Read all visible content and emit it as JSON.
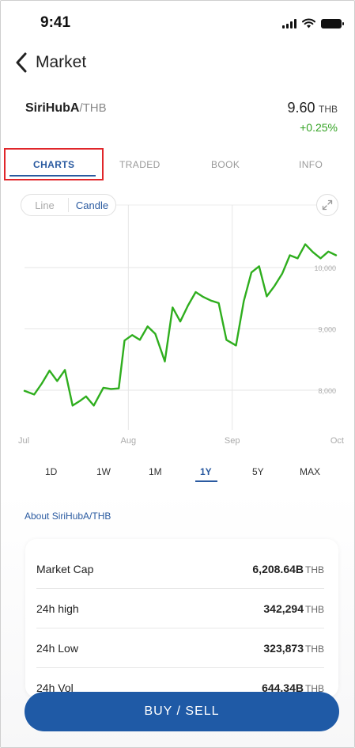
{
  "status": {
    "time": "9:41"
  },
  "header": {
    "title": "Market"
  },
  "pair": {
    "base": "SiriHubA",
    "quote": "/THB",
    "price": "9.60",
    "price_unit": "THB",
    "change": "+0.25%"
  },
  "tabs": [
    {
      "label": "CHARTS",
      "active": true
    },
    {
      "label": "TRADED",
      "active": false
    },
    {
      "label": "BOOK",
      "active": false
    },
    {
      "label": "INFO",
      "active": false
    }
  ],
  "chart_toggle": {
    "line": "Line",
    "candle": "Candle",
    "active": "Candle"
  },
  "chart_data": {
    "type": "line",
    "x_labels": [
      "Jul",
      "Aug",
      "Sep",
      "Oct"
    ],
    "y_ticks": [
      "8,000",
      "9,000",
      "10,000"
    ],
    "y_tick_values": [
      8000,
      9000,
      10000
    ],
    "ylim": [
      7000,
      11000
    ],
    "series": [
      {
        "color": "#2fae1e",
        "x": [
          0,
          0.05,
          0.09,
          0.13,
          0.17,
          0.21,
          0.25,
          0.29,
          0.32,
          0.36,
          0.41,
          0.45,
          0.49,
          0.52,
          0.56,
          0.6,
          0.64,
          0.68,
          0.73,
          0.77,
          0.81,
          0.85,
          0.89,
          0.93,
          0.97,
          1.01,
          1.05,
          1.1,
          1.14,
          1.18,
          1.22,
          1.26,
          1.3,
          1.34,
          1.38,
          1.42,
          1.46,
          1.5,
          1.54,
          1.58,
          1.62,
          1.66,
          1.7,
          1.74,
          1.78,
          1.82,
          1.86,
          1.9,
          1.94,
          1.98,
          2.02,
          2.06,
          2.1,
          2.14,
          2.18,
          2.22,
          2.26,
          2.3,
          2.34,
          2.38,
          2.42,
          2.46,
          2.5,
          2.54,
          2.58,
          2.62,
          2.66,
          2.7,
          2.74,
          2.78,
          2.82,
          2.86,
          2.9,
          2.94,
          2.98,
          3.0
        ],
        "values": [
          7990,
          7930,
          8110,
          8320,
          8150,
          8330,
          7750,
          7830,
          7900,
          7750,
          8040,
          8020,
          8030,
          8810,
          8900,
          8820,
          9040,
          8920,
          8470,
          9350,
          9120,
          9380,
          9600,
          9520,
          9460,
          9420,
          8820,
          8730,
          9450,
          9920,
          10020,
          9530,
          9700,
          9900,
          10200,
          10150,
          10380,
          10250,
          10150,
          10260,
          10200,
          10190,
          10190,
          10190,
          10190,
          10190,
          10190,
          10190,
          10190,
          10190,
          10190,
          10190,
          10190,
          10190,
          10190,
          10190,
          10190,
          10190,
          10190,
          10190,
          10190,
          10190,
          10190,
          10190,
          10190,
          10190,
          10190,
          10190,
          10190,
          10190,
          10190,
          10190,
          10190,
          10190,
          10190,
          10190
        ]
      }
    ],
    "grid": true
  },
  "ranges": [
    {
      "label": "1D",
      "active": false
    },
    {
      "label": "1W",
      "active": false
    },
    {
      "label": "1M",
      "active": false
    },
    {
      "label": "1Y",
      "active": true
    },
    {
      "label": "5Y",
      "active": false
    },
    {
      "label": "MAX",
      "active": false
    }
  ],
  "about": {
    "label": "About SiriHubA/THB"
  },
  "stats": [
    {
      "label": "Market Cap",
      "value": "6,208.64B",
      "unit": "THB"
    },
    {
      "label": "24h high",
      "value": "342,294",
      "unit": "THB"
    },
    {
      "label": "24h Low",
      "value": "323,873",
      "unit": "THB"
    },
    {
      "label": "24h Vol",
      "value": "644.34B",
      "unit": "THB"
    }
  ],
  "action": {
    "label": "BUY / SELL"
  },
  "colors": {
    "accent": "#2a5aa0",
    "button": "#1f5aa6",
    "positive": "#34a324",
    "line": "#2fae1e",
    "highlight": "#e0262a"
  }
}
